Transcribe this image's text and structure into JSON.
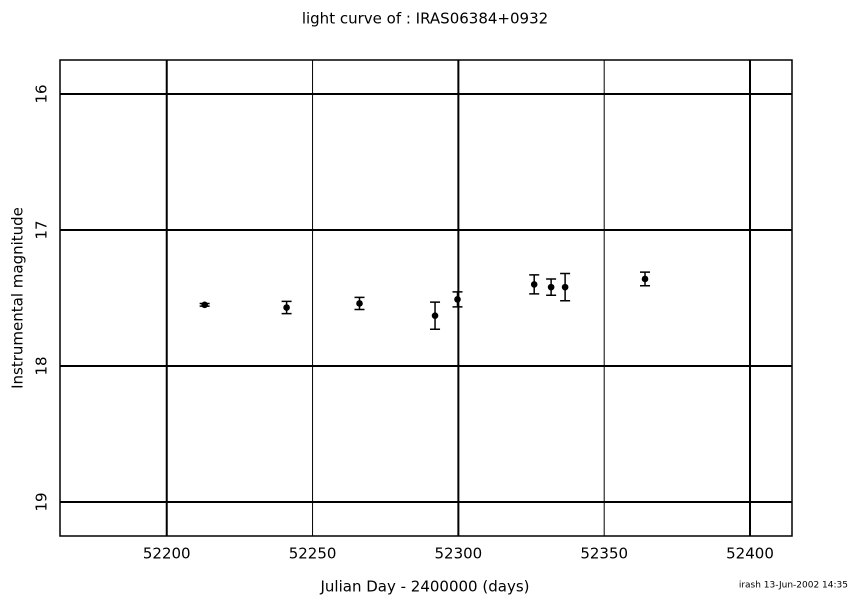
{
  "chart_data": {
    "type": "scatter",
    "title": "light curve of : IRAS06384+0932",
    "x_label": "Julian Day - 2400000 (days)",
    "y_label": "Instrumental magnitude",
    "footer": "irash 13-Jun-2002 14:35",
    "x": [
      52213.0,
      52241.1,
      52266.1,
      52292.0,
      52299.7,
      52326.0,
      52331.8,
      52336.6,
      52364.0
    ],
    "values": [
      17.55,
      17.57,
      17.54,
      17.63,
      17.51,
      17.4,
      17.42,
      17.42,
      17.36
    ],
    "errors": [
      0.01,
      0.045,
      0.045,
      0.1,
      0.055,
      0.07,
      0.06,
      0.1,
      0.05
    ],
    "color": "#000000",
    "xlim": [
      52163.4,
      52414.4
    ],
    "xticks": [
      52200,
      52250,
      52300,
      52350,
      52400
    ],
    "ylim": [
      15.75,
      19.25
    ],
    "yticks": [
      16,
      17,
      18,
      19
    ],
    "y_inverted": true,
    "grid": true
  }
}
